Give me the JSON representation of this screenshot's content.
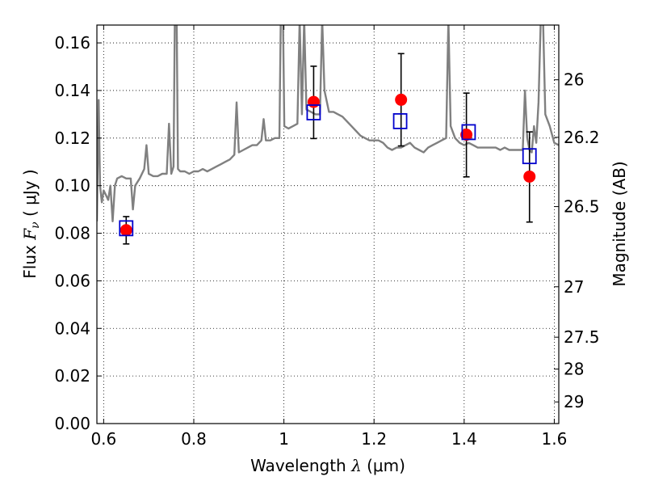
{
  "chart_data": {
    "type": "scatter",
    "xlabel": {
      "prefix": "Wavelength  ",
      "symbol": "λ",
      "unit": " (μm)"
    },
    "ylabel": {
      "prefix": "Flux  ",
      "symbol": "F",
      "subscript": "ν",
      "unit": "  ( μJy )"
    },
    "y2label": "Magnitude (AB)",
    "xlim": [
      0.585,
      1.61
    ],
    "ylim": [
      0.0,
      0.1675
    ],
    "x_ticks": [
      0.6,
      0.8,
      1.0,
      1.2,
      1.4,
      1.6
    ],
    "x_tick_labels": [
      "0.6",
      "0.8",
      "1",
      "1.2",
      "1.4",
      "1.6"
    ],
    "y_ticks": [
      0.0,
      0.02,
      0.04,
      0.06,
      0.08,
      0.1,
      0.12,
      0.14,
      0.16
    ],
    "y_tick_labels": [
      "0.00",
      "0.02",
      "0.04",
      "0.06",
      "0.08",
      "0.10",
      "0.12",
      "0.14",
      "0.16"
    ],
    "y2_ticks": [
      {
        "label": "26",
        "flux": 0.1445
      },
      {
        "label": "26.2",
        "flux": 0.1203
      },
      {
        "label": "26.5",
        "flux": 0.0912
      },
      {
        "label": "27",
        "flux": 0.0575
      },
      {
        "label": "27.5",
        "flux": 0.0363
      },
      {
        "label": "28",
        "flux": 0.0229
      },
      {
        "label": "29",
        "flux": 0.0091
      }
    ],
    "grid": true,
    "series": [
      {
        "kind": "spectrum",
        "color": "#808080",
        "points": [
          [
            0.585,
            0.085
          ],
          [
            0.589,
            0.136
          ],
          [
            0.592,
            0.1
          ],
          [
            0.596,
            0.093
          ],
          [
            0.6,
            0.098
          ],
          [
            0.605,
            0.096
          ],
          [
            0.61,
            0.094
          ],
          [
            0.615,
            0.1
          ],
          [
            0.62,
            0.085
          ],
          [
            0.625,
            0.1
          ],
          [
            0.63,
            0.103
          ],
          [
            0.64,
            0.104
          ],
          [
            0.65,
            0.103
          ],
          [
            0.66,
            0.103
          ],
          [
            0.665,
            0.09
          ],
          [
            0.67,
            0.1
          ],
          [
            0.68,
            0.103
          ],
          [
            0.69,
            0.107
          ],
          [
            0.695,
            0.117
          ],
          [
            0.7,
            0.105
          ],
          [
            0.71,
            0.104
          ],
          [
            0.72,
            0.104
          ],
          [
            0.73,
            0.105
          ],
          [
            0.74,
            0.105
          ],
          [
            0.745,
            0.126
          ],
          [
            0.75,
            0.105
          ],
          [
            0.755,
            0.108
          ],
          [
            0.758,
            0.17
          ],
          [
            0.762,
            0.17
          ],
          [
            0.765,
            0.107
          ],
          [
            0.77,
            0.106
          ],
          [
            0.78,
            0.106
          ],
          [
            0.79,
            0.105
          ],
          [
            0.8,
            0.106
          ],
          [
            0.81,
            0.106
          ],
          [
            0.82,
            0.107
          ],
          [
            0.83,
            0.106
          ],
          [
            0.84,
            0.107
          ],
          [
            0.85,
            0.108
          ],
          [
            0.86,
            0.109
          ],
          [
            0.87,
            0.11
          ],
          [
            0.88,
            0.111
          ],
          [
            0.89,
            0.113
          ],
          [
            0.895,
            0.135
          ],
          [
            0.9,
            0.114
          ],
          [
            0.91,
            0.115
          ],
          [
            0.92,
            0.116
          ],
          [
            0.93,
            0.117
          ],
          [
            0.94,
            0.117
          ],
          [
            0.95,
            0.119
          ],
          [
            0.955,
            0.128
          ],
          [
            0.96,
            0.119
          ],
          [
            0.97,
            0.119
          ],
          [
            0.98,
            0.12
          ],
          [
            0.99,
            0.12
          ],
          [
            0.993,
            0.17
          ],
          [
            0.998,
            0.17
          ],
          [
            1.001,
            0.125
          ],
          [
            1.01,
            0.124
          ],
          [
            1.02,
            0.125
          ],
          [
            1.03,
            0.126
          ],
          [
            1.035,
            0.17
          ],
          [
            1.04,
            0.13
          ],
          [
            1.045,
            0.17
          ],
          [
            1.05,
            0.132
          ],
          [
            1.06,
            0.131
          ],
          [
            1.07,
            0.13
          ],
          [
            1.08,
            0.13
          ],
          [
            1.085,
            0.17
          ],
          [
            1.09,
            0.14
          ],
          [
            1.1,
            0.131
          ],
          [
            1.11,
            0.131
          ],
          [
            1.12,
            0.13
          ],
          [
            1.13,
            0.129
          ],
          [
            1.14,
            0.127
          ],
          [
            1.15,
            0.125
          ],
          [
            1.16,
            0.123
          ],
          [
            1.17,
            0.121
          ],
          [
            1.18,
            0.12
          ],
          [
            1.19,
            0.119
          ],
          [
            1.2,
            0.119
          ],
          [
            1.21,
            0.119
          ],
          [
            1.22,
            0.118
          ],
          [
            1.23,
            0.116
          ],
          [
            1.24,
            0.115
          ],
          [
            1.25,
            0.116
          ],
          [
            1.26,
            0.116
          ],
          [
            1.27,
            0.117
          ],
          [
            1.28,
            0.118
          ],
          [
            1.29,
            0.116
          ],
          [
            1.3,
            0.115
          ],
          [
            1.31,
            0.114
          ],
          [
            1.32,
            0.116
          ],
          [
            1.33,
            0.117
          ],
          [
            1.34,
            0.118
          ],
          [
            1.35,
            0.119
          ],
          [
            1.36,
            0.12
          ],
          [
            1.365,
            0.17
          ],
          [
            1.37,
            0.125
          ],
          [
            1.38,
            0.12
          ],
          [
            1.39,
            0.118
          ],
          [
            1.4,
            0.117
          ],
          [
            1.41,
            0.118
          ],
          [
            1.42,
            0.117
          ],
          [
            1.43,
            0.116
          ],
          [
            1.44,
            0.116
          ],
          [
            1.45,
            0.116
          ],
          [
            1.46,
            0.116
          ],
          [
            1.47,
            0.116
          ],
          [
            1.48,
            0.115
          ],
          [
            1.49,
            0.116
          ],
          [
            1.5,
            0.115
          ],
          [
            1.51,
            0.115
          ],
          [
            1.52,
            0.115
          ],
          [
            1.53,
            0.115
          ],
          [
            1.535,
            0.14
          ],
          [
            1.54,
            0.12
          ],
          [
            1.545,
            0.115
          ],
          [
            1.55,
            0.114
          ],
          [
            1.555,
            0.125
          ],
          [
            1.56,
            0.118
          ],
          [
            1.565,
            0.135
          ],
          [
            1.57,
            0.17
          ],
          [
            1.575,
            0.17
          ],
          [
            1.58,
            0.13
          ],
          [
            1.59,
            0.125
          ],
          [
            1.6,
            0.118
          ],
          [
            1.61,
            0.117
          ]
        ]
      },
      {
        "kind": "observed",
        "marker": "circle",
        "color": "#ff0000",
        "points": [
          {
            "x": 0.65,
            "y": 0.0813,
            "yerr_low": 0.0755,
            "yerr_high": 0.087
          },
          {
            "x": 1.066,
            "y": 0.1352,
            "yerr_low": 0.1198,
            "yerr_high": 0.1502
          },
          {
            "x": 1.26,
            "y": 0.1361,
            "yerr_low": 0.1167,
            "yerr_high": 0.1555
          },
          {
            "x": 1.405,
            "y": 0.1214,
            "yerr_low": 0.1037,
            "yerr_high": 0.1389
          },
          {
            "x": 1.545,
            "y": 0.1038,
            "yerr_low": 0.0847,
            "yerr_high": 0.1226
          }
        ]
      },
      {
        "kind": "model",
        "marker": "square",
        "color": "#0000cc",
        "points": [
          {
            "x": 0.65,
            "y": 0.0821
          },
          {
            "x": 1.066,
            "y": 0.1308
          },
          {
            "x": 1.258,
            "y": 0.1271
          },
          {
            "x": 1.41,
            "y": 0.1225
          },
          {
            "x": 1.545,
            "y": 0.1124
          }
        ]
      }
    ]
  }
}
